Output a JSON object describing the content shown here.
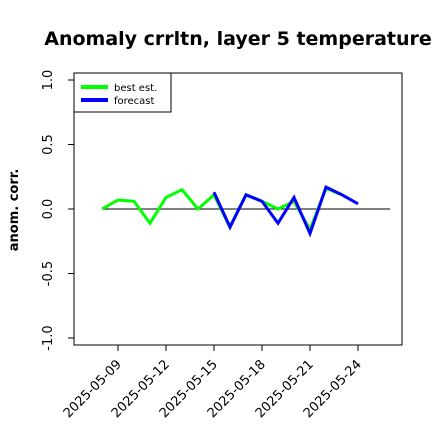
{
  "chart_data": {
    "type": "line",
    "title": "Anomaly crrltn, layer 5 temperature",
    "xlabel": "",
    "ylabel": "anom. corr.",
    "ylim": [
      -1.0,
      1.0
    ],
    "yticks": [
      "-1.0",
      "-0.5",
      "0.0",
      "0.5",
      "1.0"
    ],
    "ytick_values": [
      -1.0,
      -0.5,
      0.0,
      0.5,
      1.0
    ],
    "xlim": [
      "2025-05-07",
      "2025-05-26"
    ],
    "xticks": [
      "2025-05-09",
      "2025-05-12",
      "2025-05-15",
      "2025-05-18",
      "2025-05-21",
      "2025-05-24"
    ],
    "highlight_tick": "2025-05-15",
    "highlight_color": "#228B22",
    "reference_line": 0.0,
    "grid": false,
    "legend_position": "top-left",
    "series": [
      {
        "name": "best est.",
        "color": "#00FF00",
        "x": [
          "2025-05-08",
          "2025-05-09",
          "2025-05-10",
          "2025-05-11",
          "2025-05-12",
          "2025-05-13",
          "2025-05-14",
          "2025-05-15",
          "2025-05-16",
          "2025-05-17",
          "2025-05-18",
          "2025-05-19",
          "2025-05-20",
          "2025-05-21",
          "2025-05-22",
          "2025-05-23"
        ],
        "y": [
          0.0,
          0.07,
          0.06,
          -0.11,
          0.09,
          0.15,
          0.0,
          0.11,
          -0.14,
          0.11,
          0.06,
          0.0,
          0.06,
          -0.16,
          0.16,
          0.11
        ]
      },
      {
        "name": "forecast",
        "color": "#0000FF",
        "x": [
          "2025-05-15",
          "2025-05-16",
          "2025-05-17",
          "2025-05-18",
          "2025-05-19",
          "2025-05-20",
          "2025-05-21",
          "2025-05-22",
          "2025-05-23",
          "2025-05-24"
        ],
        "y": [
          0.13,
          -0.14,
          0.11,
          0.06,
          -0.11,
          0.09,
          -0.19,
          0.17,
          0.11,
          0.04
        ]
      }
    ]
  }
}
